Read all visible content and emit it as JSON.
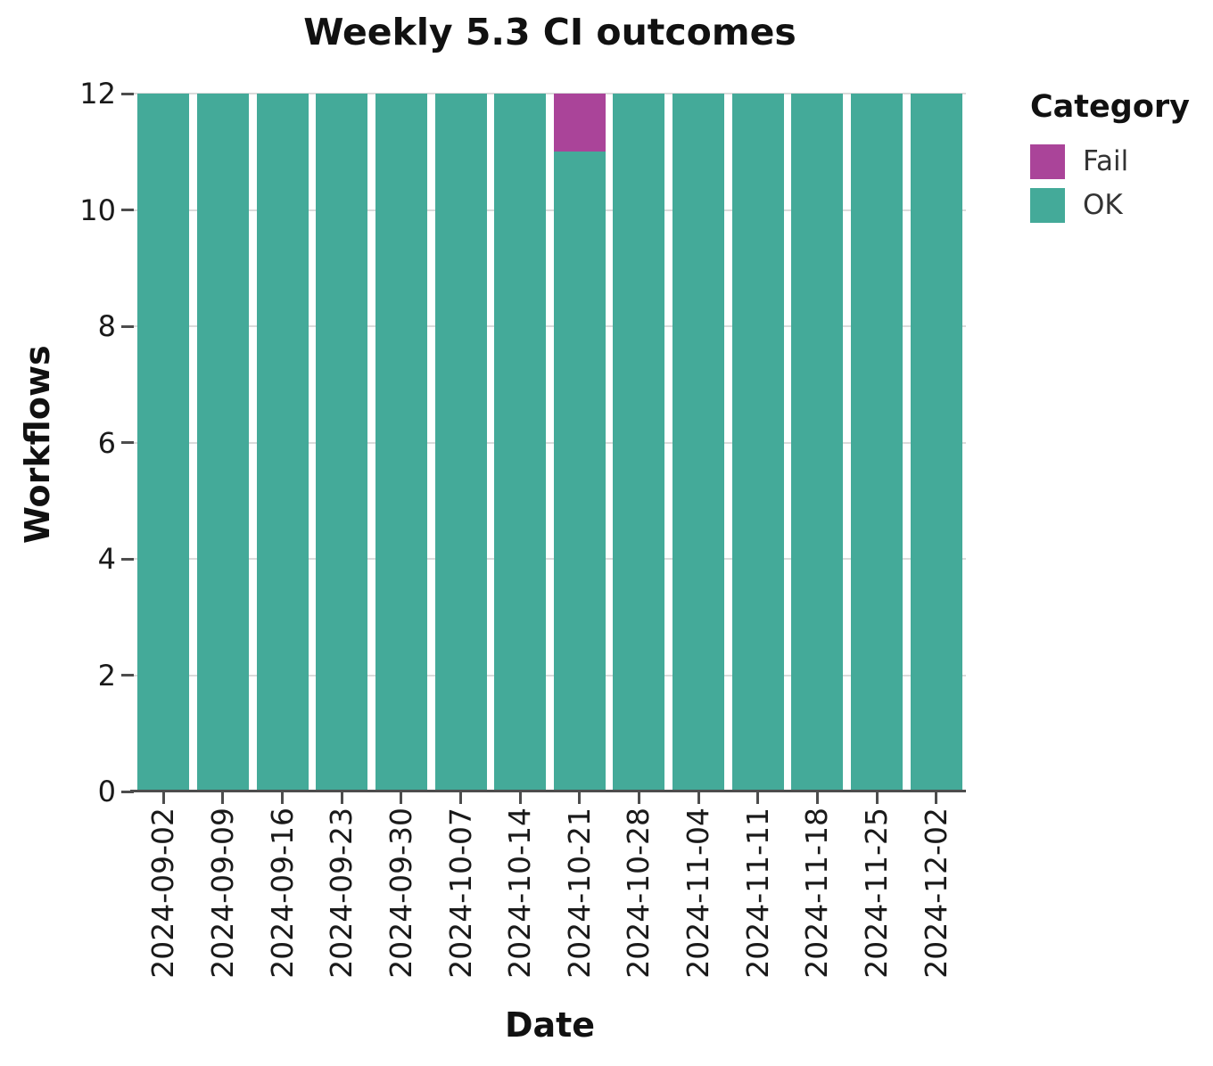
{
  "chart_data": {
    "type": "bar",
    "stacked": true,
    "title": "Weekly 5.3 CI outcomes",
    "xlabel": "Date",
    "ylabel": "Workflows",
    "categories": [
      "2024-09-02",
      "2024-09-09",
      "2024-09-16",
      "2024-09-23",
      "2024-09-30",
      "2024-10-07",
      "2024-10-14",
      "2024-10-21",
      "2024-10-28",
      "2024-11-04",
      "2024-11-11",
      "2024-11-18",
      "2024-11-25",
      "2024-12-02"
    ],
    "series": [
      {
        "name": "OK",
        "color": "#44AA99",
        "values": [
          12,
          12,
          12,
          12,
          12,
          12,
          12,
          11,
          12,
          12,
          12,
          12,
          12,
          12
        ]
      },
      {
        "name": "Fail",
        "color": "#AA4499",
        "values": [
          0,
          0,
          0,
          0,
          0,
          0,
          0,
          1,
          0,
          0,
          0,
          0,
          0,
          0
        ]
      }
    ],
    "stack_order_bottom_to_top": [
      "OK",
      "Fail"
    ],
    "ylim": [
      0,
      12
    ],
    "yticks": [
      0,
      2,
      4,
      6,
      8,
      10,
      12
    ],
    "grid": "horizontal",
    "legend": {
      "title": "Category",
      "position": "right",
      "entries": [
        {
          "label": "Fail",
          "color": "#AA4499"
        },
        {
          "label": "OK",
          "color": "#44AA99"
        }
      ]
    },
    "colors": {
      "axis": "#4d4d4d",
      "grid": "#dbdbdb",
      "tick_text": "#1a1a1a",
      "title_text": "#111111"
    }
  }
}
